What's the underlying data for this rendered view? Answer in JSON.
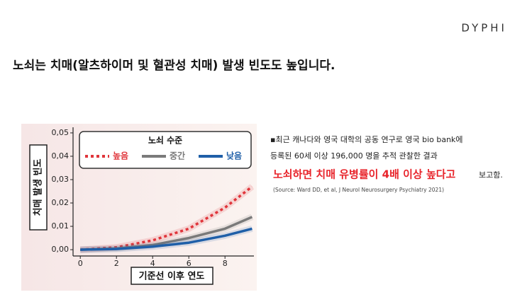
{
  "header": {
    "logo": "DYPHI",
    "title": "노쇠는 치매(알츠하이머 및 혈관성 치매) 발생 빈도도 높입니다."
  },
  "note": {
    "line1": "▪최근 캐나다와 영국 대학의 공동 연구로 영국 bio bank에",
    "line2": "등록된 60세 이상 196,000 명을 추적 관찰한 결과",
    "highlight": "노쇠하면 치매 유병률이 4배 이상 높다고",
    "tail": "보고함.",
    "source": "(Source: Ward DD, et al, J Neurol Neurosurgery Psychiatry 2021)"
  },
  "chart_data": {
    "type": "line",
    "y_label": "치매 발생 빈도",
    "x_label": "기준선 이후 연도",
    "legend_title": "노쇠 수준",
    "x": [
      0,
      2,
      4,
      6,
      8,
      9.5
    ],
    "series": [
      {
        "name": "높음",
        "color": "#e0353b",
        "dash": true,
        "values": [
          0.0,
          0.001,
          0.004,
          0.009,
          0.018,
          0.027
        ]
      },
      {
        "name": "중간",
        "color": "#7a7a7a",
        "dash": false,
        "values": [
          0.0,
          0.0005,
          0.002,
          0.005,
          0.009,
          0.014
        ]
      },
      {
        "name": "낮음",
        "color": "#1f5fa8",
        "dash": false,
        "values": [
          0.0,
          0.0003,
          0.0013,
          0.003,
          0.006,
          0.009
        ]
      }
    ],
    "xlim": [
      -0.4,
      9.6
    ],
    "ylim": [
      -0.0027,
      0.0524
    ],
    "xticks": [
      0,
      2,
      4,
      6,
      8
    ],
    "yticks": [
      {
        "value": 0.0,
        "label": "0,00"
      },
      {
        "value": 0.01,
        "label": "0,01"
      },
      {
        "value": 0.02,
        "label": "0,02"
      },
      {
        "value": 0.03,
        "label": "0,03"
      },
      {
        "value": 0.04,
        "label": "0,04"
      },
      {
        "value": 0.05,
        "label": "0,05"
      }
    ]
  }
}
